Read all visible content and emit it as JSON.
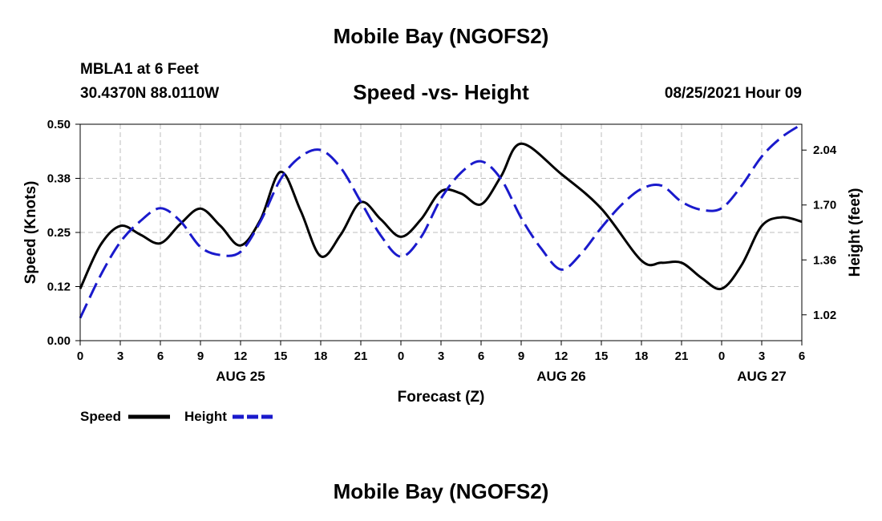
{
  "header": {
    "top_title": "Mobile Bay (NGOFS2)",
    "station": "MBLA1 at 6 Feet",
    "coords": "30.4370N  88.0110W",
    "datetime": "08/25/2021 Hour 09"
  },
  "footer": {
    "bottom_title": "Mobile Bay (NGOFS2)"
  },
  "chart_data": {
    "type": "line",
    "title": "Speed -vs- Height",
    "xlabel": "Forecast (Z)",
    "ylabel_left": "Speed (Knots)",
    "ylabel_right": "Height (feet)",
    "grid": true,
    "x_unit": "hours after 08/25 00Z",
    "x_range": [
      0,
      54
    ],
    "x_ticks": [
      {
        "x": 0,
        "label": "0"
      },
      {
        "x": 3,
        "label": "3"
      },
      {
        "x": 6,
        "label": "6"
      },
      {
        "x": 9,
        "label": "9"
      },
      {
        "x": 12,
        "label": "12"
      },
      {
        "x": 15,
        "label": "15"
      },
      {
        "x": 18,
        "label": "18"
      },
      {
        "x": 21,
        "label": "21"
      },
      {
        "x": 24,
        "label": "0"
      },
      {
        "x": 27,
        "label": "3"
      },
      {
        "x": 30,
        "label": "6"
      },
      {
        "x": 33,
        "label": "9"
      },
      {
        "x": 36,
        "label": "12"
      },
      {
        "x": 39,
        "label": "15"
      },
      {
        "x": 42,
        "label": "18"
      },
      {
        "x": 45,
        "label": "21"
      },
      {
        "x": 48,
        "label": "0"
      },
      {
        "x": 51,
        "label": "3"
      },
      {
        "x": 54,
        "label": "6"
      }
    ],
    "date_labels": [
      {
        "x": 12,
        "label": "AUG 25"
      },
      {
        "x": 36,
        "label": "AUG 26"
      },
      {
        "x": 51,
        "label": "AUG 27"
      }
    ],
    "y_left": {
      "range": [
        0,
        0.5
      ],
      "ticks": [
        {
          "value": 0.0,
          "label": "0.00"
        },
        {
          "value": 0.125,
          "label": "0.12"
        },
        {
          "value": 0.25,
          "label": "0.25"
        },
        {
          "value": 0.375,
          "label": "0.38"
        },
        {
          "value": 0.5,
          "label": "0.50"
        }
      ]
    },
    "y_right": {
      "range": [
        0.86,
        2.2
      ],
      "ticks": [
        {
          "value": 1.02,
          "label": "1.02"
        },
        {
          "value": 1.36,
          "label": "1.36"
        },
        {
          "value": 1.7,
          "label": "1.70"
        },
        {
          "value": 2.04,
          "label": "2.04"
        }
      ]
    },
    "legend": {
      "placement": "bottom-left",
      "entries": [
        {
          "name": "Speed",
          "color": "#000000",
          "dash": "solid"
        },
        {
          "name": "Height",
          "color": "#1a1acc",
          "dash": "dashed"
        }
      ]
    },
    "series": [
      {
        "name": "Speed",
        "axis": "left",
        "color": "#000000",
        "x": [
          0,
          1.5,
          3,
          4.5,
          6,
          7.5,
          9,
          10.5,
          12,
          13.5,
          15,
          16.5,
          18,
          19.5,
          21,
          22.5,
          24,
          25.5,
          27,
          28.5,
          30,
          31.5,
          33,
          36,
          39,
          42,
          43.5,
          45,
          46.5,
          48,
          49.5,
          51,
          52.5,
          54
        ],
        "values": [
          0.12,
          0.22,
          0.265,
          0.245,
          0.225,
          0.27,
          0.305,
          0.265,
          0.22,
          0.28,
          0.39,
          0.3,
          0.195,
          0.245,
          0.32,
          0.28,
          0.24,
          0.28,
          0.345,
          0.34,
          0.315,
          0.38,
          0.455,
          0.385,
          0.305,
          0.185,
          0.18,
          0.18,
          0.145,
          0.12,
          0.175,
          0.265,
          0.285,
          0.275
        ]
      },
      {
        "name": "Height",
        "axis": "right",
        "color": "#1a1acc",
        "x": [
          0,
          1.5,
          3,
          4.5,
          6,
          7.5,
          9,
          10.5,
          12,
          13.5,
          15,
          16.5,
          18,
          19.5,
          21,
          22.5,
          24,
          25.5,
          27,
          28.5,
          30,
          31.5,
          33,
          34.5,
          36,
          37.5,
          39,
          40.5,
          42,
          43.5,
          45,
          46.5,
          48,
          49.5,
          51,
          52.5,
          54
        ],
        "values": [
          1.0,
          1.26,
          1.47,
          1.6,
          1.68,
          1.6,
          1.44,
          1.39,
          1.41,
          1.6,
          1.86,
          2.0,
          2.04,
          1.93,
          1.72,
          1.51,
          1.38,
          1.5,
          1.74,
          1.9,
          1.97,
          1.86,
          1.62,
          1.43,
          1.3,
          1.4,
          1.56,
          1.7,
          1.8,
          1.82,
          1.72,
          1.67,
          1.68,
          1.82,
          2.0,
          2.12,
          2.2
        ]
      }
    ]
  }
}
